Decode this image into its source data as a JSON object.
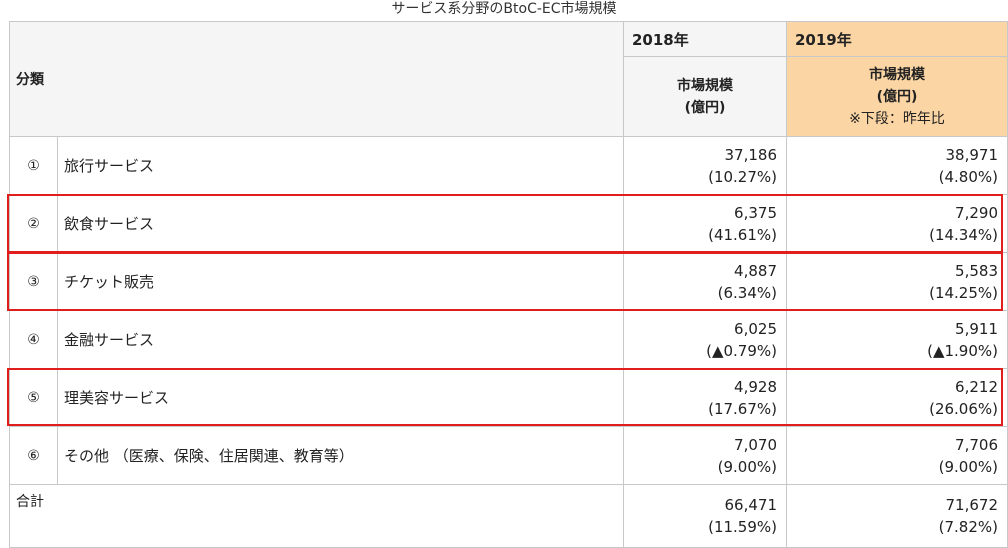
{
  "title": "サービス系分野のBtoC-EC市場規模",
  "header": {
    "category": "分類",
    "year_2018": "2018年",
    "year_2019": "2019年",
    "market_size_line1": "市場規模",
    "market_size_line2": "(億円)",
    "note": "※下段：昨年比"
  },
  "rows": [
    {
      "num": "①",
      "name": "旅行サービス",
      "v2018": "37,186",
      "r2018": "(10.27%)",
      "v2019": "38,971",
      "r2019": "(4.80%)"
    },
    {
      "num": "②",
      "name": "飲食サービス",
      "v2018": "6,375",
      "r2018": "(41.61%)",
      "v2019": "7,290",
      "r2019": "(14.34%)"
    },
    {
      "num": "③",
      "name": "チケット販売",
      "v2018": "4,887",
      "r2018": "(6.34%)",
      "v2019": "5,583",
      "r2019": "(14.25%)"
    },
    {
      "num": "④",
      "name": "金融サービス",
      "v2018": "6,025",
      "r2018": "(▲0.79%)",
      "v2019": "5,911",
      "r2019": "(▲1.90%)"
    },
    {
      "num": "⑤",
      "name": "理美容サービス",
      "v2018": "4,928",
      "r2018": "(17.67%)",
      "v2019": "6,212",
      "r2019": "(26.06%)"
    },
    {
      "num": "⑥",
      "name": "その他 （医療、保険、住居関連、教育等）",
      "v2018": "7,070",
      "r2018": "(9.00%)",
      "v2019": "7,706",
      "r2019": "(9.00%)"
    }
  ],
  "total": {
    "label": "合計",
    "v2018": "66,471",
    "r2018": "(11.59%)",
    "v2019": "71,672",
    "r2019": "(7.82%)"
  },
  "colors": {
    "highlight": "#e01e1e",
    "year2019_bg": "#fcd5a4",
    "header_bg": "#f5f5f5"
  }
}
